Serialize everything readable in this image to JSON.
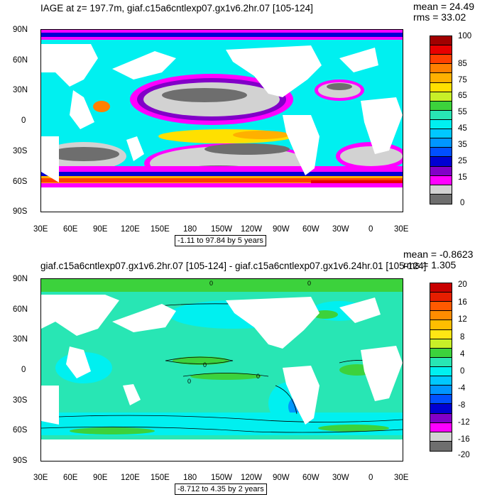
{
  "top": {
    "title": "IAGE at z= 197.7m, giaf.c15a6cntlexp07.gx1v6.2hr.07 [105-124]",
    "mean": "mean = 24.49",
    "rms": "rms = 33.02",
    "range_label": "-1.11 to 97.84 by 5 years",
    "colorbar_labels": [
      "100",
      "85",
      "75",
      "65",
      "55",
      "45",
      "35",
      "25",
      "15",
      "0"
    ],
    "colors": [
      "#a10000",
      "#e80000",
      "#ff4000",
      "#ff8000",
      "#ffb000",
      "#ffe000",
      "#c8f028",
      "#3cd23c",
      "#28e6b4",
      "#00f0f0",
      "#00c8ff",
      "#0096ff",
      "#0050ff",
      "#0000d2",
      "#8200c8",
      "#ff00ff",
      "#d2d2d2",
      "#6e6e6e"
    ]
  },
  "bottom": {
    "title": "giaf.c15a6cntlexp07.gx1v6.2hr.07 [105-124] - giaf.c15a6cntlexp07.gx1v6.24hr.01 [105-124]",
    "mean": "mean = -0.8623",
    "rms": "rms = 1.305",
    "range_label": "-8.712 to 4.35 by 2 years",
    "contour_label": "0",
    "colorbar_labels": [
      "20",
      "16",
      "12",
      "8",
      "4",
      "0",
      "-4",
      "-8",
      "-12",
      "-16",
      "-20"
    ],
    "colors": [
      "#c80000",
      "#e61e00",
      "#ff5a00",
      "#ff8c00",
      "#ffbe00",
      "#ffe614",
      "#c8f028",
      "#3cd23c",
      "#28e6b4",
      "#00f0f0",
      "#00c8ff",
      "#0096ff",
      "#0050ff",
      "#0000d2",
      "#8200c8",
      "#ff00ff",
      "#d2d2d2",
      "#6e6e6e"
    ]
  },
  "axes": {
    "lat_labels": [
      "90N",
      "60N",
      "30N",
      "0",
      "30S",
      "60S",
      "90S"
    ],
    "lon_labels": [
      "30E",
      "60E",
      "90E",
      "120E",
      "150E",
      "180",
      "150W",
      "120W",
      "90W",
      "60W",
      "30W",
      "0",
      "30E"
    ]
  }
}
